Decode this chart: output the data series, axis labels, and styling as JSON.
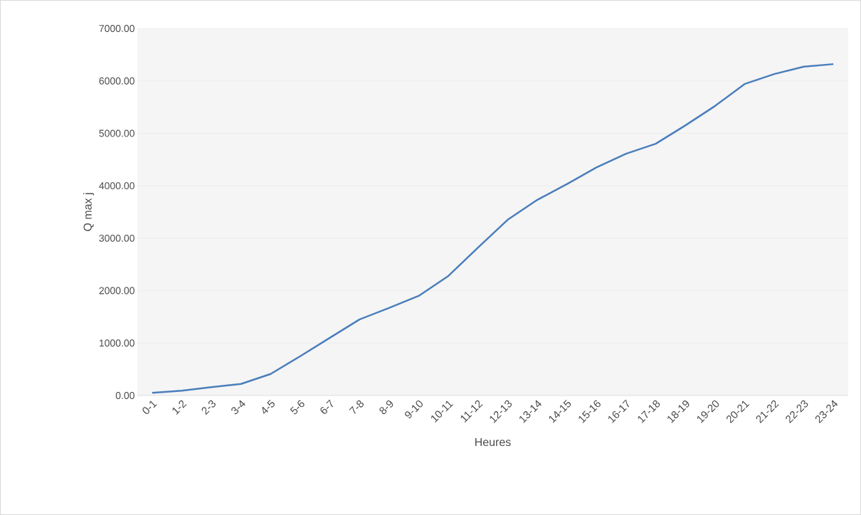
{
  "chart_data": {
    "type": "line",
    "xlabel": "Heures",
    "ylabel": "Q max j",
    "categories": [
      "0-1",
      "1-2",
      "2-3",
      "3-4",
      "4-5",
      "5-6",
      "6-7",
      "7-8",
      "8-9",
      "9-10",
      "10-11",
      "11-12",
      "12-13",
      "13-14",
      "14-15",
      "15-16",
      "16-17",
      "17-18",
      "18-19",
      "19-20",
      "20-21",
      "21-22",
      "22-23",
      "23-24"
    ],
    "values": [
      50,
      90,
      160,
      220,
      410,
      750,
      1100,
      1450,
      1670,
      1900,
      2280,
      2820,
      3350,
      3730,
      4030,
      4350,
      4610,
      4800,
      5150,
      5520,
      5940,
      6130,
      6270,
      6320
    ],
    "color": "#4a7ebb",
    "ylim": [
      0,
      7000
    ],
    "yticks": [
      {
        "value": 0,
        "label": "0.00"
      },
      {
        "value": 1000,
        "label": "1000.00"
      },
      {
        "value": 2000,
        "label": "2000.00"
      },
      {
        "value": 3000,
        "label": "3000.00"
      },
      {
        "value": 4000,
        "label": "4000.00"
      },
      {
        "value": 5000,
        "label": "5000.00"
      },
      {
        "value": 6000,
        "label": "6000.00"
      },
      {
        "value": 7000,
        "label": "7000.00"
      }
    ],
    "grid": "y",
    "marker": "none",
    "line_style": "solid"
  }
}
